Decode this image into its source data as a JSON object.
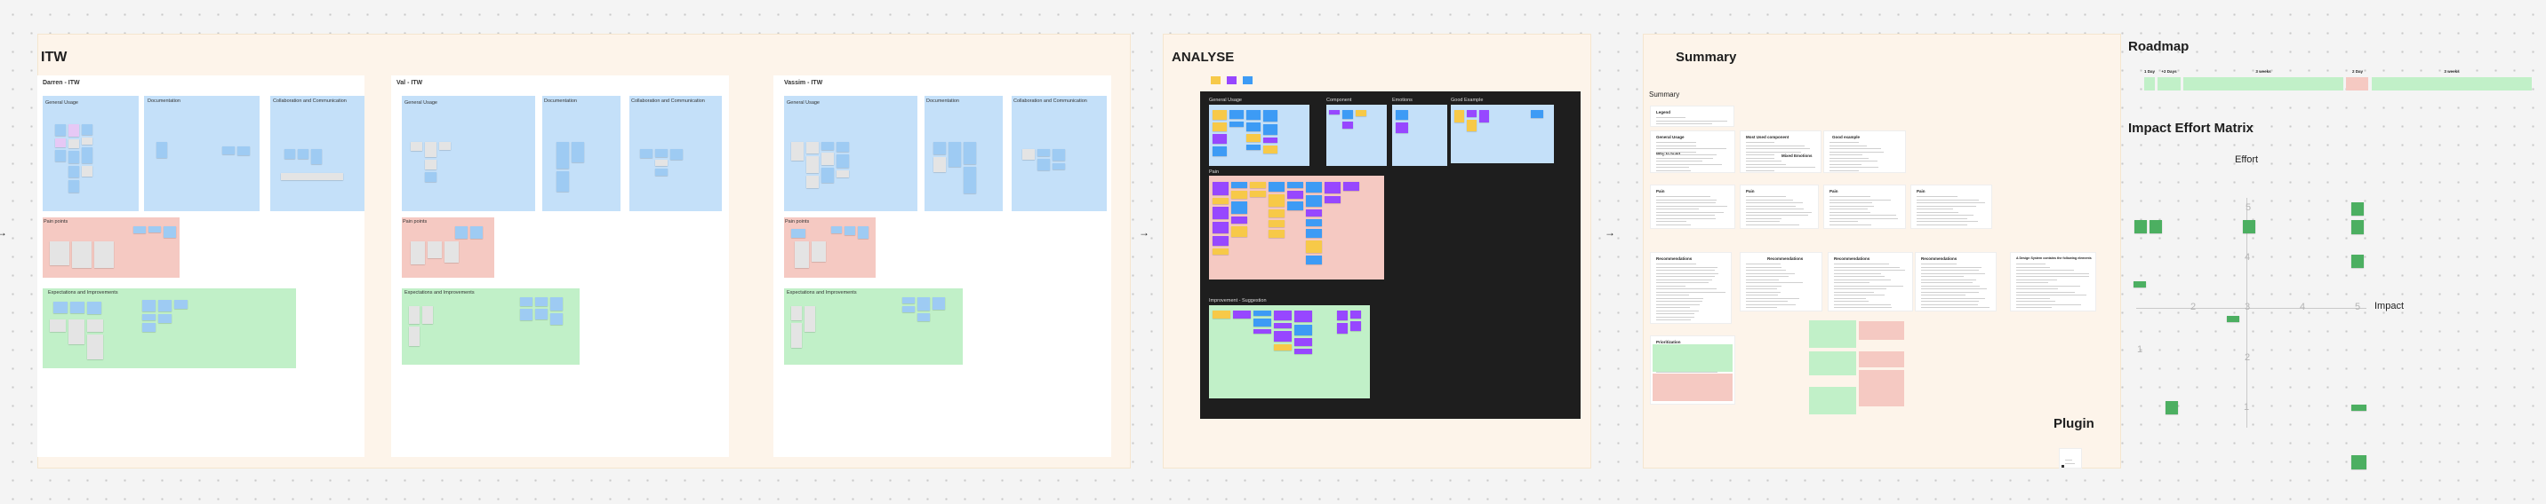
{
  "itw": {
    "title": "ITW",
    "cards": [
      {
        "name": "Darren - ITW"
      },
      {
        "name": "Val - ITW"
      },
      {
        "name": "Vassim - ITW"
      }
    ],
    "groups": {
      "general_usage": "General Usage",
      "documentation": "Documentation",
      "collaboration": "Collaboration and Communication",
      "pain_points": "Pain points",
      "expectations": "Expectations and Improvements"
    }
  },
  "analyse": {
    "title": "ANALYSE",
    "legend_colors": [
      "#f7c948",
      "#9747ff",
      "#3d9bf5"
    ],
    "groups": {
      "general_usage": "General Usage",
      "component": "Component",
      "emotions": "Emotions",
      "good_example": "Good Example",
      "pain": "Pain",
      "improvement": "Improvement - Suggestion"
    }
  },
  "summary": {
    "title": "Summary",
    "subtitle": "Summary",
    "legend": "Legend",
    "cards": {
      "general_usage": "General Usage",
      "why_to_build": "Why to build",
      "most_used": "Most Used component",
      "mixed_emotions": "Mixed Emotions",
      "good_example": "Good example",
      "pain": [
        "Pain",
        "Pain",
        "Pain",
        "Pain"
      ],
      "recommendations": [
        "Recommendations",
        "Recommendations",
        "Recommendations",
        "Recommendations"
      ],
      "design_system": "A Design System contains the following elements",
      "prioritization": "Prioritization"
    },
    "plugin": "Plugin"
  },
  "roadmap": {
    "title": "Roadmap",
    "durations": [
      "1 Day",
      "+2 Days",
      "3 weeks",
      "2 Day",
      "3 weeks"
    ],
    "status_colors": [
      "#c1f0c8",
      "#c1f0c8",
      "#c1f0c8",
      "#f5c9c2",
      "#c1f0c8"
    ]
  },
  "matrix": {
    "title": "Impact Effort Matrix",
    "y_label": "Effort",
    "x_label": "Impact",
    "x_ticks": [
      "1",
      "2",
      "3",
      "4",
      "5"
    ],
    "y_ticks": [
      "1",
      "2",
      "4",
      "5"
    ],
    "note_color": "#4caf61"
  }
}
